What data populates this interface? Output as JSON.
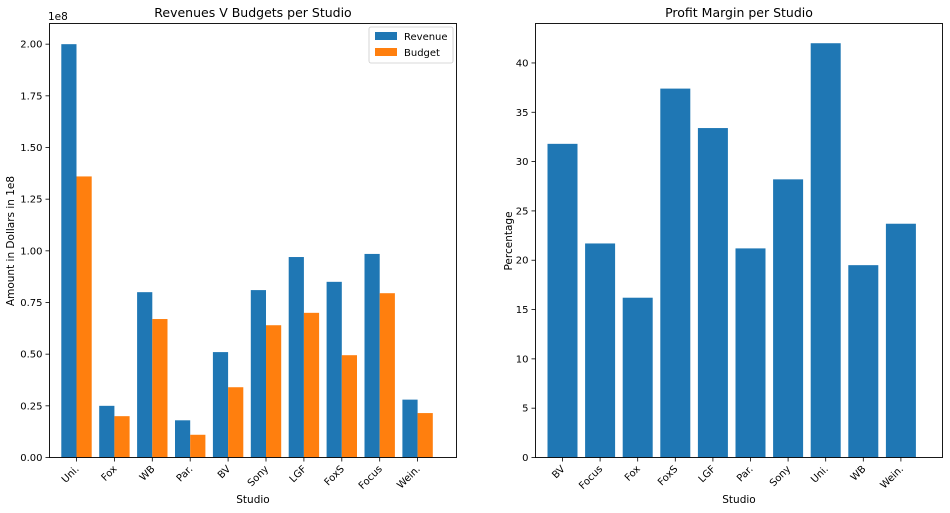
{
  "chart_data": [
    {
      "type": "bar",
      "title": "Revenues V Budgets per Studio",
      "xlabel": "Studio",
      "ylabel": "Amount in Dollars in 1e8",
      "y_offset_text": "1e8",
      "categories": [
        "Uni.",
        "Fox",
        "WB",
        "Par.",
        "BV",
        "Sony",
        "LGF",
        "FoxS",
        "Focus",
        "Wein."
      ],
      "series": [
        {
          "name": "Revenue",
          "color": "#1f77b4",
          "values": [
            2.0,
            0.25,
            0.8,
            0.18,
            0.51,
            0.81,
            0.97,
            0.85,
            0.985,
            0.28
          ]
        },
        {
          "name": "Budget",
          "color": "#ff7f0e",
          "values": [
            1.36,
            0.2,
            0.67,
            0.11,
            0.34,
            0.64,
            0.7,
            0.495,
            0.795,
            0.215
          ]
        }
      ],
      "ylim": [
        0,
        2.1
      ],
      "yticks": [
        "0.00",
        "0.25",
        "0.50",
        "0.75",
        "1.00",
        "1.25",
        "1.50",
        "1.75",
        "2.00"
      ],
      "legend": "top-right",
      "grid": false
    },
    {
      "type": "bar",
      "title": "Profit Margin per Studio",
      "xlabel": "Studio",
      "ylabel": "Percentage",
      "categories": [
        "BV",
        "Focus",
        "Fox",
        "FoxS",
        "LGF",
        "Par.",
        "Sony",
        "Uni.",
        "WB",
        "Wein."
      ],
      "series": [
        {
          "name": "",
          "color": "#1f77b4",
          "values": [
            31.8,
            21.7,
            16.2,
            37.4,
            33.4,
            21.2,
            28.2,
            42.0,
            19.5,
            23.7
          ]
        }
      ],
      "ylim": [
        0,
        44
      ],
      "yticks": [
        "0",
        "5",
        "10",
        "15",
        "20",
        "25",
        "30",
        "35",
        "40"
      ],
      "grid": false
    }
  ]
}
